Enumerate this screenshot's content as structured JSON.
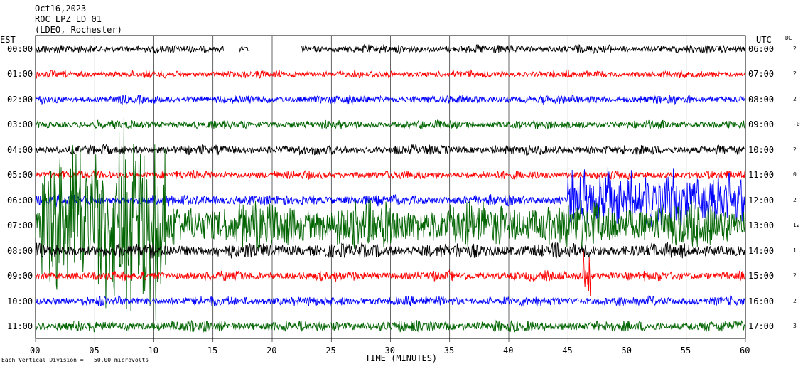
{
  "header": {
    "date": "Oct16,2023",
    "station": "ROC LPZ LD 01",
    "location": "(LDEO, Rochester)"
  },
  "chart_data": {
    "type": "line",
    "title": "",
    "xlabel": "TIME (MINUTES)",
    "left_axis_label": "EST",
    "right_axis_label": "UTC",
    "dc_label": "DC",
    "xlim": [
      0,
      60
    ],
    "x_ticks": [
      0,
      5,
      10,
      15,
      20,
      25,
      30,
      35,
      40,
      45,
      50,
      55,
      60
    ],
    "x_tick_labels": [
      "00",
      "05",
      "10",
      "15",
      "20",
      "25",
      "30",
      "35",
      "40",
      "45",
      "50",
      "55",
      "60"
    ],
    "grid": "vertical lines every 5 minutes",
    "scale_note": "Each Vertical Division =   50.00 microvolts",
    "trace_colors": [
      "#000000",
      "#ff0000",
      "#0000ff",
      "#006400"
    ],
    "rows": [
      {
        "est": "00:00",
        "utc": "06:00",
        "dc": "2",
        "color": "#000000",
        "amp": 7,
        "gaps": [
          [
            15.9,
            17.2
          ],
          [
            18.0,
            22.5
          ]
        ]
      },
      {
        "est": "01:00",
        "utc": "07:00",
        "dc": "2",
        "color": "#ff0000",
        "amp": 6,
        "gaps": []
      },
      {
        "est": "02:00",
        "utc": "08:00",
        "dc": "2",
        "color": "#0000ff",
        "amp": 7,
        "gaps": []
      },
      {
        "est": "03:00",
        "utc": "09:00",
        "dc": "-0",
        "color": "#006400",
        "amp": 7,
        "gaps": []
      },
      {
        "est": "04:00",
        "utc": "10:00",
        "dc": "2",
        "color": "#000000",
        "amp": 8,
        "gaps": []
      },
      {
        "est": "05:00",
        "utc": "11:00",
        "dc": "0",
        "color": "#ff0000",
        "amp": 7,
        "gaps": []
      },
      {
        "est": "06:00",
        "utc": "12:00",
        "dc": "2",
        "color": "#0000ff",
        "amp": 9,
        "gaps": []
      },
      {
        "est": "07:00",
        "utc": "13:00",
        "dc": "12",
        "color": "#006400",
        "amp": 38,
        "gaps": []
      },
      {
        "est": "08:00",
        "utc": "14:00",
        "dc": "1",
        "color": "#000000",
        "amp": 12,
        "gaps": []
      },
      {
        "est": "09:00",
        "utc": "15:00",
        "dc": "2",
        "color": "#ff0000",
        "amp": 8,
        "gaps": []
      },
      {
        "est": "10:00",
        "utc": "16:00",
        "dc": "2",
        "color": "#0000ff",
        "amp": 8,
        "gaps": []
      },
      {
        "est": "11:00",
        "utc": "17:00",
        "dc": "3",
        "color": "#006400",
        "amp": 9,
        "gaps": []
      }
    ],
    "events": [
      {
        "row": 6,
        "start": 45.0,
        "end": 60.0,
        "amp": 45
      },
      {
        "row": 9,
        "start": 46.3,
        "end": 46.9,
        "amp": 40
      },
      {
        "row": 7,
        "start": 0.5,
        "end": 11.0,
        "amp": 130
      }
    ]
  }
}
